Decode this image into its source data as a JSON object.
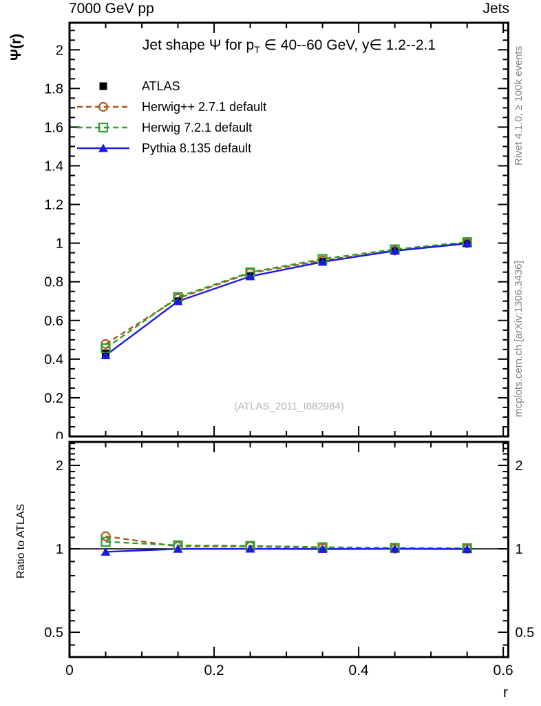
{
  "header": {
    "left": "7000 GeV pp",
    "right": "Jets"
  },
  "side_notes": {
    "top": "Rivet 4.1.0, ≥ 100k events",
    "bottom": "mcplots.cern.ch [arXiv:1306.3436]"
  },
  "watermark": "(ATLAS_2011_I882984)",
  "chart_data": {
    "type": "line",
    "title": "Jet shape Ψ for p_T ∈ 40--60 GeV, y∈ 1.2--2.1",
    "title_parts": {
      "pre": "Jet shape Ψ for p",
      "sub": "T",
      "post": " ∈ 40--60 GeV, y∈ 1.2--2.1"
    },
    "xlabel": "r",
    "ylabel_main": "Ψ(r)",
    "ylabel_ratio": "Ratio to ATLAS",
    "legend_position": "top-left",
    "grid": false,
    "x": [
      0.05,
      0.15,
      0.25,
      0.35,
      0.45,
      0.55
    ],
    "xlim": [
      0,
      0.607
    ],
    "x_major_ticks": [
      0,
      0.2,
      0.4,
      0.6
    ],
    "x_tick_labels": [
      "0",
      "0.2",
      "0.4",
      "0.6"
    ],
    "x_minor_step": 0.05,
    "main_panel": {
      "ylim": [
        0,
        2.14
      ],
      "y_major_step": 0.2,
      "y_minor_step": 0.05,
      "y_tick_labels": [
        "0",
        "0.2",
        "0.4",
        "0.6",
        "0.8",
        "1",
        "1.2",
        "1.4",
        "1.6",
        "1.8",
        "2"
      ]
    },
    "ratio_panel": {
      "scale": "log",
      "ylim": [
        0.407,
        2.43
      ],
      "unity": 1,
      "y_major_ticks": [
        0.5,
        1,
        2
      ],
      "y_tick_labels": [
        "0.5",
        "1",
        "2"
      ],
      "y_minor_ticks": [
        0.45,
        0.55,
        0.6,
        0.7,
        0.8,
        0.9,
        1.1,
        1.2,
        1.3,
        1.4,
        1.5,
        1.6,
        1.7,
        1.8,
        1.9,
        2.1,
        2.2,
        2.3,
        2.4
      ]
    },
    "series": [
      {
        "name": "ATLAS",
        "color": "#000000",
        "marker": "filled-square",
        "line": "none",
        "values": [
          0.43,
          0.7,
          0.828,
          0.905,
          0.96,
          1.0
        ],
        "ratio": [
          1,
          1,
          1,
          1,
          1,
          1
        ]
      },
      {
        "name": "Herwig++ 2.7.1 default",
        "color": "#b3591c",
        "marker": "open-circle",
        "line": "dashed",
        "values": [
          0.478,
          0.714,
          0.845,
          0.91,
          0.962,
          1.0
        ],
        "ratio": [
          1.11,
          1.02,
          1.02,
          1.006,
          1.002,
          1.0
        ]
      },
      {
        "name": "Herwig 7.2.1 default",
        "color": "#2ca02c",
        "marker": "open-square",
        "line": "dashed",
        "values": [
          0.456,
          0.721,
          0.849,
          0.918,
          0.968,
          1.005
        ],
        "ratio": [
          1.06,
          1.03,
          1.025,
          1.014,
          1.008,
          1.005
        ]
      },
      {
        "name": "Pythia 8.135 default",
        "color": "#1a1ae6",
        "marker": "filled-triangle",
        "line": "solid",
        "values": [
          0.419,
          0.699,
          0.828,
          0.903,
          0.96,
          0.998
        ],
        "ratio": [
          0.975,
          0.999,
          1.0,
          0.998,
          1.0,
          0.998
        ],
        "ratio_err": [
          0.03,
          0.01,
          0.008,
          0.006,
          0.005,
          0.005
        ]
      }
    ]
  }
}
